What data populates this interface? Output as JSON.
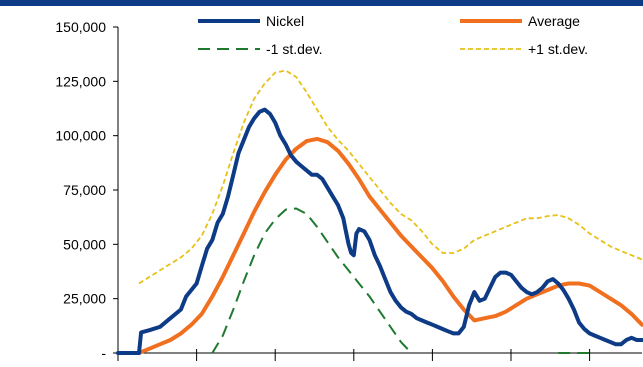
{
  "chart_data": {
    "type": "line",
    "ylim": [
      0,
      150000
    ],
    "yticks": [
      {
        "value": 0,
        "label": "-"
      },
      {
        "value": 25000,
        "label": "25,000"
      },
      {
        "value": 50000,
        "label": "50,000"
      },
      {
        "value": 75000,
        "label": "75,000"
      },
      {
        "value": 100000,
        "label": "100,000"
      },
      {
        "value": 125000,
        "label": "125,000"
      },
      {
        "value": 150000,
        "label": "150,000"
      }
    ],
    "x_domain": [
      0,
      100
    ],
    "x_gridlines": [
      0,
      15,
      30,
      45,
      60,
      75,
      90
    ],
    "grid": false,
    "legend_position": "top",
    "series": [
      {
        "name": "Nickel",
        "color": "#0d3b86",
        "style": "solid-thick",
        "points": [
          [
            0,
            0
          ],
          [
            4,
            0
          ],
          [
            4.4,
            9500
          ],
          [
            6,
            10500
          ],
          [
            8,
            12000
          ],
          [
            10,
            16000
          ],
          [
            12,
            20000
          ],
          [
            13,
            26000
          ],
          [
            15,
            32000
          ],
          [
            16,
            40000
          ],
          [
            17,
            48000
          ],
          [
            18,
            52000
          ],
          [
            19,
            60000
          ],
          [
            20,
            64000
          ],
          [
            21,
            72000
          ],
          [
            22,
            82000
          ],
          [
            23,
            92000
          ],
          [
            24,
            98000
          ],
          [
            25,
            104000
          ],
          [
            26,
            108000
          ],
          [
            27,
            111000
          ],
          [
            28,
            112000
          ],
          [
            29,
            110000
          ],
          [
            30,
            106000
          ],
          [
            31,
            100000
          ],
          [
            32,
            96000
          ],
          [
            33,
            91000
          ],
          [
            34,
            88000
          ],
          [
            35,
            86000
          ],
          [
            36,
            84000
          ],
          [
            37,
            82000
          ],
          [
            38,
            82000
          ],
          [
            39,
            80000
          ],
          [
            40,
            76000
          ],
          [
            41,
            72000
          ],
          [
            42,
            68000
          ],
          [
            43,
            62000
          ],
          [
            43.5,
            56000
          ],
          [
            44,
            50000
          ],
          [
            44.5,
            46000
          ],
          [
            45,
            45000
          ],
          [
            45.5,
            55000
          ],
          [
            46,
            57000
          ],
          [
            47,
            56000
          ],
          [
            48,
            52000
          ],
          [
            49,
            45000
          ],
          [
            50,
            40000
          ],
          [
            51,
            34000
          ],
          [
            52,
            28000
          ],
          [
            53,
            24000
          ],
          [
            54,
            21000
          ],
          [
            55,
            19000
          ],
          [
            56,
            18000
          ],
          [
            57,
            16000
          ],
          [
            58,
            15000
          ],
          [
            59,
            14000
          ],
          [
            60,
            13000
          ],
          [
            61,
            12000
          ],
          [
            62,
            11000
          ],
          [
            63,
            10000
          ],
          [
            64,
            9000
          ],
          [
            65,
            9000
          ],
          [
            66,
            12000
          ],
          [
            67,
            22000
          ],
          [
            68,
            28000
          ],
          [
            69,
            24000
          ],
          [
            70,
            25000
          ],
          [
            71,
            30000
          ],
          [
            72,
            35000
          ],
          [
            73,
            37000
          ],
          [
            74,
            37000
          ],
          [
            75,
            36000
          ],
          [
            76,
            33000
          ],
          [
            77,
            30000
          ],
          [
            78,
            28000
          ],
          [
            79,
            27000
          ],
          [
            80,
            28000
          ],
          [
            81,
            30000
          ],
          [
            82,
            33000
          ],
          [
            83,
            34000
          ],
          [
            84,
            32000
          ],
          [
            85,
            29000
          ],
          [
            86,
            25000
          ],
          [
            87,
            20000
          ],
          [
            88,
            14000
          ],
          [
            89,
            11000
          ],
          [
            90,
            9000
          ],
          [
            91,
            8000
          ],
          [
            92,
            7000
          ],
          [
            93,
            6000
          ],
          [
            94,
            5000
          ],
          [
            95,
            4000
          ],
          [
            96,
            4000
          ],
          [
            97,
            6000
          ],
          [
            98,
            7000
          ],
          [
            99,
            6000
          ],
          [
            100,
            6000
          ]
        ]
      },
      {
        "name": "Average",
        "color": "#f07020",
        "style": "solid-thick",
        "points": [
          [
            4,
            0
          ],
          [
            6,
            2000
          ],
          [
            8,
            4000
          ],
          [
            10,
            6000
          ],
          [
            12,
            9000
          ],
          [
            14,
            13000
          ],
          [
            16,
            18000
          ],
          [
            18,
            26000
          ],
          [
            20,
            35000
          ],
          [
            22,
            45000
          ],
          [
            24,
            55000
          ],
          [
            26,
            65000
          ],
          [
            28,
            74000
          ],
          [
            30,
            82000
          ],
          [
            32,
            89000
          ],
          [
            34,
            94000
          ],
          [
            36,
            97500
          ],
          [
            38,
            98500
          ],
          [
            40,
            97000
          ],
          [
            42,
            93000
          ],
          [
            44,
            87000
          ],
          [
            46,
            80000
          ],
          [
            48,
            72000
          ],
          [
            50,
            66000
          ],
          [
            52,
            60000
          ],
          [
            54,
            54000
          ],
          [
            56,
            49000
          ],
          [
            58,
            44000
          ],
          [
            60,
            39000
          ],
          [
            62,
            33000
          ],
          [
            64,
            26000
          ],
          [
            66,
            20000
          ],
          [
            68,
            15000
          ],
          [
            70,
            16000
          ],
          [
            72,
            17000
          ],
          [
            74,
            19000
          ],
          [
            76,
            22000
          ],
          [
            78,
            25000
          ],
          [
            80,
            27000
          ],
          [
            82,
            29000
          ],
          [
            84,
            31000
          ],
          [
            86,
            32000
          ],
          [
            88,
            32000
          ],
          [
            90,
            31000
          ],
          [
            92,
            28000
          ],
          [
            94,
            25000
          ],
          [
            96,
            22000
          ],
          [
            98,
            18000
          ],
          [
            100,
            13000
          ]
        ]
      },
      {
        "name": "-1 st.dev.",
        "color": "#1f7a30",
        "style": "dashed",
        "points": [
          [
            18,
            0
          ],
          [
            20,
            8000
          ],
          [
            22,
            20000
          ],
          [
            24,
            33000
          ],
          [
            26,
            45000
          ],
          [
            28,
            55000
          ],
          [
            30,
            61500
          ],
          [
            32,
            66000
          ],
          [
            34,
            66500
          ],
          [
            36,
            64000
          ],
          [
            38,
            58000
          ],
          [
            40,
            51000
          ],
          [
            42,
            44000
          ],
          [
            44,
            38000
          ],
          [
            46,
            32000
          ],
          [
            48,
            26000
          ],
          [
            50,
            19000
          ],
          [
            52,
            12000
          ],
          [
            54,
            5000
          ],
          [
            56,
            0
          ]
        ]
      },
      {
        "name": "+1 st.dev.",
        "color": "#e8c018",
        "style": "dotted",
        "points": [
          [
            4,
            32000
          ],
          [
            6,
            35000
          ],
          [
            8,
            38000
          ],
          [
            10,
            41000
          ],
          [
            12,
            44000
          ],
          [
            14,
            48000
          ],
          [
            16,
            54000
          ],
          [
            18,
            64000
          ],
          [
            20,
            77000
          ],
          [
            22,
            92000
          ],
          [
            24,
            106000
          ],
          [
            26,
            117000
          ],
          [
            28,
            124000
          ],
          [
            30,
            129000
          ],
          [
            32,
            130000
          ],
          [
            34,
            127000
          ],
          [
            36,
            120000
          ],
          [
            38,
            112000
          ],
          [
            40,
            104000
          ],
          [
            42,
            98000
          ],
          [
            44,
            93000
          ],
          [
            46,
            87000
          ],
          [
            48,
            81000
          ],
          [
            50,
            75000
          ],
          [
            52,
            69000
          ],
          [
            54,
            64000
          ],
          [
            56,
            61000
          ],
          [
            58,
            56000
          ],
          [
            60,
            50000
          ],
          [
            62,
            46000
          ],
          [
            64,
            46000
          ],
          [
            66,
            48000
          ],
          [
            68,
            52000
          ],
          [
            70,
            54000
          ],
          [
            72,
            56000
          ],
          [
            74,
            58000
          ],
          [
            76,
            60000
          ],
          [
            78,
            62000
          ],
          [
            80,
            62000
          ],
          [
            82,
            63000
          ],
          [
            84,
            63500
          ],
          [
            86,
            62000
          ],
          [
            88,
            59000
          ],
          [
            90,
            55000
          ],
          [
            92,
            52000
          ],
          [
            94,
            49000
          ],
          [
            96,
            47000
          ],
          [
            98,
            45000
          ],
          [
            100,
            43000
          ]
        ]
      },
      {
        "name": "",
        "color": "#1f7a30",
        "style": "dashed",
        "points": [
          [
            84,
            0
          ],
          [
            86,
            0.5
          ],
          [
            88,
            0.5
          ],
          [
            90,
            0
          ]
        ]
      }
    ]
  }
}
